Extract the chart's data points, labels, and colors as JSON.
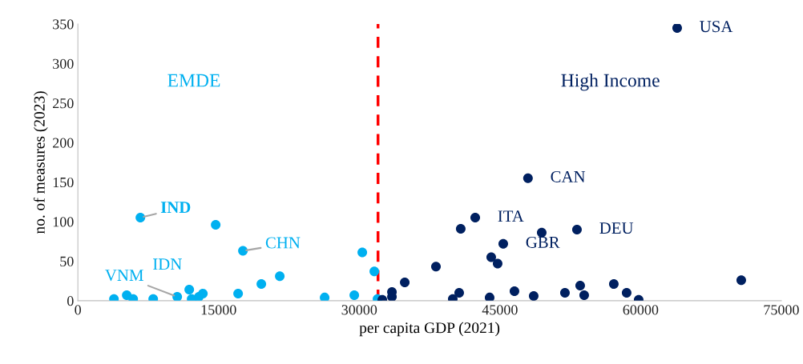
{
  "chart_data": {
    "type": "scatter",
    "xlabel": "per capita GDP (2021)",
    "ylabel": "no. of measures (2023)",
    "xlim": [
      0,
      75000
    ],
    "xticks": [
      0,
      15000,
      30000,
      45000,
      60000,
      75000
    ],
    "ylim": [
      0,
      350
    ],
    "yticks": [
      0,
      50,
      100,
      150,
      200,
      250,
      300,
      350
    ],
    "grid": false,
    "marker": "circle",
    "series": [
      {
        "name": "EMDE",
        "color": "#00b0f0",
        "x": [
          3844,
          5211,
          5894,
          8030,
          6663,
          10592,
          11873,
          12130,
          12900,
          13325,
          14693,
          17084,
          17597,
          19560,
          21525,
          26310,
          29470,
          30324,
          31605,
          31947
        ],
        "values": [
          2,
          7,
          2,
          2,
          105,
          5,
          14,
          2,
          5,
          9,
          96,
          9,
          63,
          21,
          31,
          4,
          7,
          61,
          37,
          2
        ]
      },
      {
        "name": "High Income",
        "color": "#002060",
        "x": [
          47989,
          42365,
          40820,
          49454,
          53212,
          45353,
          44071,
          44754,
          38178,
          34852,
          33485,
          33485,
          32460,
          39970,
          40653,
          43900,
          46548,
          48599,
          51931,
          53554,
          53981,
          57141,
          58508,
          59792,
          70729,
          63895
        ],
        "values": [
          155,
          105,
          91,
          86,
          90,
          72,
          55,
          47,
          43,
          23,
          11,
          5,
          1,
          2,
          10,
          4,
          12,
          6,
          10,
          19,
          7,
          21,
          10,
          1,
          26,
          345
        ]
      }
    ],
    "ref_lines": [
      {
        "axis": "x",
        "value": 32000,
        "color": "#ff0000",
        "line_style": "dashed"
      }
    ],
    "annotations": [
      {
        "text": "IND",
        "x": 6663,
        "y": 105
      },
      {
        "text": "CHN",
        "x": 17597,
        "y": 63
      },
      {
        "text": "VNM",
        "x": 10592,
        "y": 5
      },
      {
        "text": "IDN",
        "x": 12900,
        "y": 5
      },
      {
        "text": "USA",
        "x": 63895,
        "y": 345
      },
      {
        "text": "CAN",
        "x": 47989,
        "y": 155
      },
      {
        "text": "ITA",
        "x": 42365,
        "y": 105
      },
      {
        "text": "DEU",
        "x": 53212,
        "y": 90
      },
      {
        "text": "GBR",
        "x": 45353,
        "y": 72
      }
    ]
  }
}
